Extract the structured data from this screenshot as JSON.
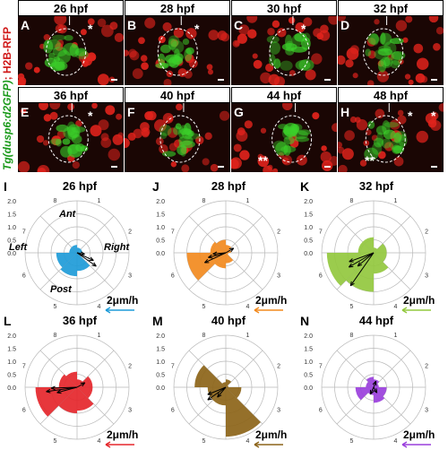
{
  "figure": {
    "side_label_green": "Tg(dusp6:d2GFP)",
    "side_label_sep": "; ",
    "side_label_red": "H2B-RFP",
    "image_panels": [
      {
        "letter": "A",
        "time": "26 hpf",
        "marks": [
          "*"
        ]
      },
      {
        "letter": "B",
        "time": "28 hpf",
        "marks": [
          "*"
        ]
      },
      {
        "letter": "C",
        "time": "30 hpf",
        "marks": [
          "*"
        ]
      },
      {
        "letter": "D",
        "time": "32 hpf",
        "marks": []
      },
      {
        "letter": "E",
        "time": "36 hpf",
        "marks": [
          "*"
        ]
      },
      {
        "letter": "F",
        "time": "40 hpf",
        "marks": []
      },
      {
        "letter": "G",
        "time": "44 hpf",
        "marks": [
          "**"
        ]
      },
      {
        "letter": "H",
        "time": "48 hpf",
        "marks": [
          "*",
          "*",
          "**"
        ]
      }
    ],
    "colors": {
      "red_channel": "#e0231c",
      "green_channel": "#3bd02a",
      "background": "#1a0604"
    }
  },
  "chart_data": [
    {
      "type": "rose",
      "panel": "I",
      "time": "26 hpf",
      "color": "#1e9bd8",
      "ring_labels": [
        "2.0",
        "1.5",
        "1.0",
        "0.5",
        "0.0"
      ],
      "sector_labels": [
        "8",
        "1",
        "2",
        "3",
        "4",
        "5",
        "6",
        "7"
      ],
      "directions": {
        "ant": "Ant",
        "post": "Post",
        "left": "Left",
        "right": "Right"
      },
      "sectors": [
        0.15,
        0.1,
        0.1,
        0.05,
        0.35,
        0.45,
        0.4,
        0.15
      ],
      "vectors": [
        {
          "angle": 125,
          "mag": 0.9
        },
        {
          "angle": 115,
          "mag": 0.7
        },
        {
          "angle": 100,
          "mag": 0.3
        }
      ],
      "scale": "2μm/h"
    },
    {
      "type": "rose",
      "panel": "J",
      "time": "28 hpf",
      "color": "#f28a1e",
      "ring_labels": [
        "2.0",
        "1.5",
        "1.0",
        "0.5",
        "0.0"
      ],
      "sector_labels": [
        "8",
        "1",
        "2",
        "3",
        "4",
        "5",
        "6",
        "7"
      ],
      "sectors": [
        0.25,
        0.15,
        0.1,
        0.05,
        0.2,
        0.3,
        0.75,
        0.3
      ],
      "vectors": [
        {
          "angle": 245,
          "mag": 0.9
        },
        {
          "angle": 255,
          "mag": 0.7
        },
        {
          "angle": 265,
          "mag": 0.5
        },
        {
          "angle": 60,
          "mag": 0.35
        }
      ],
      "scale": "2μm/h"
    },
    {
      "type": "rose",
      "panel": "K",
      "time": "32 hpf",
      "color": "#92c83e",
      "ring_labels": [
        "2.0",
        "1.5",
        "1.0",
        "0.5",
        "0.0"
      ],
      "sector_labels": [
        "8",
        "1",
        "2",
        "3",
        "4",
        "5",
        "6",
        "7"
      ],
      "sectors": [
        0.3,
        0.1,
        0.25,
        0.25,
        0.4,
        0.75,
        0.9,
        0.3
      ],
      "vectors": [
        {
          "angle": 215,
          "mag": 1.55
        },
        {
          "angle": 240,
          "mag": 1.1
        },
        {
          "angle": 250,
          "mag": 1.0
        },
        {
          "angle": 230,
          "mag": 0.8
        }
      ],
      "scale": "2μm/h"
    },
    {
      "type": "rose",
      "panel": "L",
      "time": "36 hpf",
      "color": "#e5262b",
      "ring_labels": [
        "2.0",
        "1.5",
        "1.0",
        "0.5",
        "0.0"
      ],
      "sector_labels": [
        "8",
        "1",
        "2",
        "3",
        "4",
        "5",
        "6",
        "7"
      ],
      "sectors": [
        0.3,
        0.15,
        0.3,
        0.3,
        0.45,
        0.5,
        0.8,
        0.35
      ],
      "vectors": [
        {
          "angle": 262,
          "mag": 1.2
        },
        {
          "angle": 268,
          "mag": 1.0
        },
        {
          "angle": 255,
          "mag": 0.8
        },
        {
          "angle": 60,
          "mag": 0.35
        }
      ],
      "scale": "2μm/h"
    },
    {
      "type": "rose",
      "panel": "M",
      "time": "40 hpf",
      "color": "#8c6418",
      "ring_labels": [
        "2.0",
        "1.5",
        "1.0",
        "0.5",
        "0.0"
      ],
      "sector_labels": [
        "8",
        "1",
        "2",
        "3",
        "4",
        "5",
        "6",
        "7"
      ],
      "sectors": [
        0.1,
        0.15,
        0.05,
        0.3,
        0.95,
        0.35,
        0.35,
        0.6
      ],
      "vectors": [
        {
          "angle": 235,
          "mag": 0.85
        },
        {
          "angle": 248,
          "mag": 0.75
        },
        {
          "angle": 220,
          "mag": 0.5
        }
      ],
      "scale": "2μm/h"
    },
    {
      "type": "rose",
      "panel": "N",
      "time": "44 hpf",
      "color": "#9a3fdc",
      "ring_labels": [
        "2.0",
        "1.5",
        "1.0",
        "0.5",
        "0.0"
      ],
      "sector_labels": [
        "8",
        "1",
        "2",
        "3",
        "4",
        "5",
        "6",
        "7"
      ],
      "sectors": [
        0.2,
        0.15,
        0.1,
        0.25,
        0.3,
        0.15,
        0.35,
        0.15
      ],
      "vectors": [
        {
          "angle": 205,
          "mag": 0.3
        },
        {
          "angle": 150,
          "mag": 0.25
        },
        {
          "angle": 20,
          "mag": 0.25
        }
      ],
      "scale": "2μm/h"
    }
  ]
}
